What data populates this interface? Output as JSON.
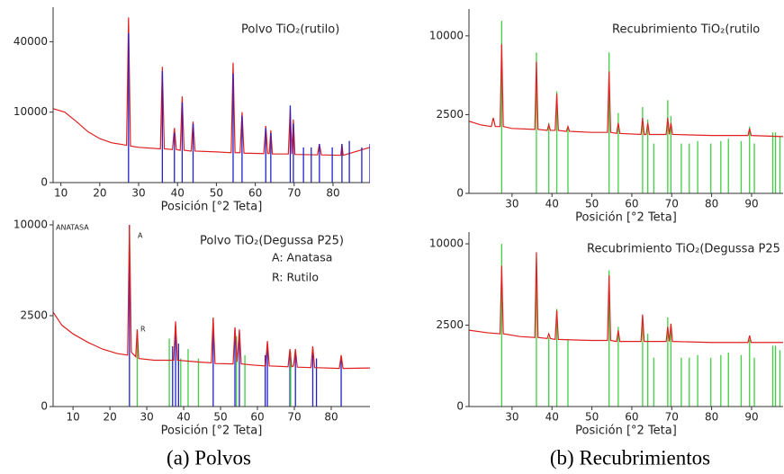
{
  "captions": [
    "(a) Polvos",
    "(b) Recubrimientos"
  ],
  "chart_data": [
    {
      "type": "line",
      "title": "Polvo TiO₂(rutilo)",
      "x_label": "Posición [°2 Teta]",
      "yscale": "sqrt",
      "xlim": [
        8,
        89.5
      ],
      "ylim": [
        0,
        62000
      ],
      "xticks": [
        10,
        20,
        30,
        40,
        50,
        60,
        70,
        80
      ],
      "yticks": [
        0,
        10000,
        40000
      ],
      "series": [
        {
          "style": "line",
          "color": "#e02020",
          "x": [
            8,
            11,
            14,
            17,
            20,
            23,
            26,
            26.9,
            27.4,
            27.9,
            30,
            35.6,
            36.1,
            36.6,
            38.7,
            39.2,
            39.7,
            40.7,
            41.2,
            41.7,
            43.5,
            44,
            44.5,
            50,
            53.8,
            54.3,
            54.8,
            56.1,
            56.6,
            57.1,
            62.2,
            62.7,
            63.2,
            63.6,
            64,
            64.4,
            68.5,
            69,
            69.4,
            69.8,
            70.2,
            76,
            76.5,
            77,
            82,
            82.3,
            82.6,
            89.5
          ],
          "values": [
            11000,
            10000,
            7500,
            5200,
            3900,
            3200,
            2900,
            2800,
            55000,
            2700,
            2500,
            2300,
            27000,
            2300,
            2200,
            6000,
            2200,
            2100,
            15000,
            2100,
            2000,
            7500,
            2000,
            1900,
            1800,
            29000,
            1800,
            1800,
            10000,
            1750,
            1700,
            6500,
            1700,
            1700,
            5500,
            1650,
            1650,
            11000,
            1650,
            8000,
            1600,
            1550,
            3000,
            1550,
            1500,
            3000,
            1500,
            2500
          ]
        },
        {
          "style": "stick",
          "color": "#2020d0",
          "x": [
            27.4,
            36.1,
            39.2,
            41.2,
            44.0,
            54.3,
            56.6,
            62.7,
            64.0,
            69.0,
            69.8,
            72.4,
            74.4,
            76.5,
            79.8,
            82.3,
            84.2,
            87.4,
            89.5
          ],
          "values": [
            45000,
            25000,
            5000,
            13000,
            7000,
            24000,
            9000,
            6000,
            5000,
            12000,
            7000,
            2500,
            2500,
            3000,
            2500,
            3000,
            3500,
            2500,
            3000
          ]
        }
      ]
    },
    {
      "type": "line",
      "title": "Polvo TiO₂(Degussa P25)",
      "x_label": "Posición [°2 Teta]",
      "yscale": "sqrt",
      "annotations": [
        "A: Anatasa",
        "R: Rutilo",
        "ANATASA",
        "A",
        "R"
      ],
      "xlim": [
        4.6,
        90.5
      ],
      "ylim": [
        0,
        10500
      ],
      "xticks": [
        10,
        20,
        30,
        40,
        50,
        60,
        70,
        80
      ],
      "yticks": [
        0,
        2500,
        10000
      ],
      "series": [
        {
          "style": "stick",
          "color": "#2020d0",
          "x": [
            25.3,
            37.0,
            37.8,
            38.6,
            48.0,
            53.9,
            55.1,
            62.1,
            62.7,
            68.8,
            70.3,
            75.0,
            76.0,
            82.7
          ],
          "values": [
            10000,
            1100,
            2000,
            1200,
            2300,
            1800,
            1700,
            800,
            1200,
            900,
            950,
            1000,
            700,
            750
          ]
        },
        {
          "style": "stick",
          "color": "#40d040",
          "x": [
            27.4,
            36.1,
            39.2,
            41.2,
            44.0,
            54.3,
            56.6,
            69.0
          ],
          "values": [
            1800,
            1400,
            700,
            1000,
            700,
            1500,
            800,
            900
          ]
        },
        {
          "style": "line",
          "color": "#e02020",
          "x": [
            4.6,
            7,
            10,
            14,
            18,
            22,
            24.8,
            25.3,
            25.8,
            27,
            27.4,
            27.8,
            32,
            37.3,
            37.8,
            38.3,
            44,
            47.5,
            48,
            48.5,
            53.4,
            53.9,
            54.5,
            55.1,
            55.6,
            59,
            62.2,
            62.7,
            63.2,
            68.3,
            68.8,
            69.3,
            69.8,
            70.3,
            70.8,
            74.5,
            75,
            75.5,
            82.2,
            82.7,
            83.2,
            90.5
          ],
          "values": [
            2700,
            2000,
            1600,
            1250,
            1000,
            850,
            800,
            10000,
            900,
            750,
            1800,
            700,
            650,
            650,
            2200,
            650,
            600,
            580,
            2400,
            560,
            550,
            1900,
            600,
            1800,
            550,
            520,
            500,
            1300,
            500,
            480,
            1000,
            480,
            500,
            1000,
            470,
            460,
            1100,
            460,
            440,
            800,
            440,
            450
          ]
        }
      ]
    },
    {
      "type": "line",
      "title": "Recubrimiento TiO₂(rutilo",
      "x_label": "Posición [°2 Teta]",
      "yscale": "sqrt",
      "xlim": [
        19.2,
        97.9
      ],
      "ylim": [
        0,
        13700
      ],
      "xticks": [
        30,
        40,
        50,
        60,
        70,
        80,
        90
      ],
      "yticks": [
        0,
        2500,
        10000
      ],
      "series": [
        {
          "style": "stick",
          "color": "#40d040",
          "x": [
            27.4,
            36.1,
            39.2,
            41.2,
            44.0,
            54.3,
            56.6,
            62.7,
            64.0,
            65.5,
            69.0,
            69.8,
            72.4,
            74.4,
            76.5,
            79.8,
            82.3,
            84.2,
            87.4,
            89.5,
            90.7,
            95.3,
            96.0,
            97.1
          ],
          "values": [
            12000,
            8000,
            2000,
            4200,
            1800,
            8000,
            2600,
            3000,
            2200,
            1000,
            3500,
            2400,
            1000,
            1000,
            1100,
            1000,
            1100,
            1200,
            1100,
            1800,
            1000,
            1500,
            1500,
            1300
          ]
        },
        {
          "style": "line",
          "color": "#e02020",
          "x": [
            19.2,
            22,
            24.8,
            25.3,
            25.8,
            27,
            27.4,
            27.8,
            30,
            35.7,
            36.1,
            36.5,
            38.8,
            39.2,
            39.6,
            40.8,
            41.2,
            41.6,
            43.6,
            44,
            44.4,
            50,
            53.9,
            54.3,
            54.7,
            56.2,
            56.6,
            57,
            62.3,
            62.7,
            63.1,
            63.6,
            64,
            64.4,
            68.6,
            69,
            69.4,
            69.8,
            70.2,
            80,
            89.1,
            89.5,
            89.9,
            97.9
          ],
          "values": [
            2100,
            1900,
            1800,
            2300,
            1800,
            1800,
            9000,
            1800,
            1700,
            1650,
            7000,
            1650,
            1600,
            1900,
            1600,
            1600,
            4000,
            1600,
            1550,
            1800,
            1550,
            1500,
            1500,
            6000,
            1500,
            1450,
            2000,
            1450,
            1400,
            2300,
            1400,
            1400,
            2000,
            1400,
            1400,
            2300,
            1400,
            2000,
            1400,
            1350,
            1350,
            1700,
            1350,
            1300
          ]
        }
      ]
    },
    {
      "type": "line",
      "title": "Recubrimiento TiO₂(Degussa P25",
      "x_label": "Posición [°2 Teta]",
      "yscale": "sqrt",
      "xlim": [
        19.2,
        97.9
      ],
      "ylim": [
        0,
        11500
      ],
      "xticks": [
        30,
        40,
        50,
        60,
        70,
        80,
        90
      ],
      "yticks": [
        0,
        2500,
        10000
      ],
      "series": [
        {
          "style": "stick",
          "color": "#40d040",
          "x": [
            27.4,
            36.1,
            39.2,
            41.2,
            44.0,
            54.3,
            56.6,
            62.7,
            64.0,
            65.5,
            69.0,
            69.8,
            72.4,
            74.4,
            76.5,
            79.8,
            82.3,
            84.2,
            87.4,
            89.5,
            90.7,
            95.3,
            96.0,
            97.1
          ],
          "values": [
            10000,
            7000,
            1800,
            3600,
            1700,
            7000,
            2400,
            2700,
            2000,
            900,
            3000,
            2200,
            900,
            900,
            1000,
            900,
            1000,
            1100,
            1000,
            1700,
            900,
            1400,
            1400,
            1200
          ]
        },
        {
          "style": "line",
          "color": "#e02020",
          "x": [
            19.2,
            24,
            27,
            27.4,
            27.8,
            32,
            35.7,
            36.1,
            36.5,
            38.8,
            39.2,
            39.6,
            40.8,
            41.2,
            41.6,
            50,
            53.9,
            54.3,
            54.7,
            56.2,
            56.6,
            57,
            62.3,
            62.7,
            63.1,
            68.6,
            69,
            69.4,
            69.8,
            70.2,
            80,
            89.1,
            89.5,
            89.9,
            97.9
          ],
          "values": [
            2200,
            2050,
            2000,
            7500,
            2000,
            1850,
            1800,
            9000,
            1800,
            1750,
            2000,
            1750,
            1700,
            3500,
            1700,
            1650,
            1650,
            6500,
            1650,
            1600,
            2200,
            1600,
            1600,
            3200,
            1600,
            1600,
            2400,
            1600,
            2600,
            1600,
            1550,
            1550,
            1900,
            1550,
            1550
          ]
        }
      ]
    }
  ]
}
